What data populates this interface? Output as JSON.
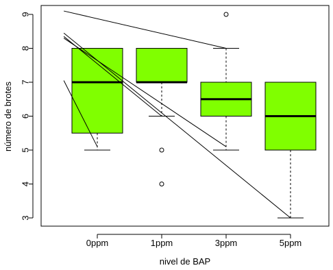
{
  "chart_data": {
    "type": "box",
    "title": "",
    "xlabel": "nivel de BAP",
    "ylabel": "número de brotes",
    "ylim": [
      2.7,
      9.3
    ],
    "yticks": [
      3,
      4,
      5,
      6,
      7,
      8,
      9
    ],
    "categories": [
      "0ppm",
      "1ppm",
      "3ppm",
      "5ppm"
    ],
    "box_color": "#80ff00",
    "boxes": [
      {
        "label": "0ppm",
        "lower_whisker": 5,
        "q1": 5.5,
        "median": 7,
        "q3": 8,
        "upper_whisker": 8,
        "outliers": []
      },
      {
        "label": "1ppm",
        "lower_whisker": 6,
        "q1": 7,
        "median": 7,
        "q3": 8,
        "upper_whisker": 8,
        "outliers": [
          5,
          4
        ]
      },
      {
        "label": "3ppm",
        "lower_whisker": 5,
        "q1": 6,
        "median": 6.5,
        "q3": 7,
        "upper_whisker": 8,
        "outliers": [
          9
        ]
      },
      {
        "label": "5ppm",
        "lower_whisker": 3,
        "q1": 5,
        "median": 6,
        "q3": 7,
        "upper_whisker": 7,
        "outliers": []
      }
    ],
    "overlay_lines": [
      {
        "from": [
          0.48,
          9.1
        ],
        "to": [
          3.0,
          8.0
        ]
      },
      {
        "from": [
          0.48,
          8.45
        ],
        "to": [
          4.0,
          3.0
        ]
      },
      {
        "from": [
          0.48,
          8.35
        ],
        "to": [
          2.0,
          6.0
        ]
      },
      {
        "from": [
          0.48,
          8.3
        ],
        "to": [
          3.0,
          5.1
        ]
      },
      {
        "from": [
          0.48,
          7.05
        ],
        "to": [
          1.0,
          5.1
        ]
      }
    ]
  }
}
